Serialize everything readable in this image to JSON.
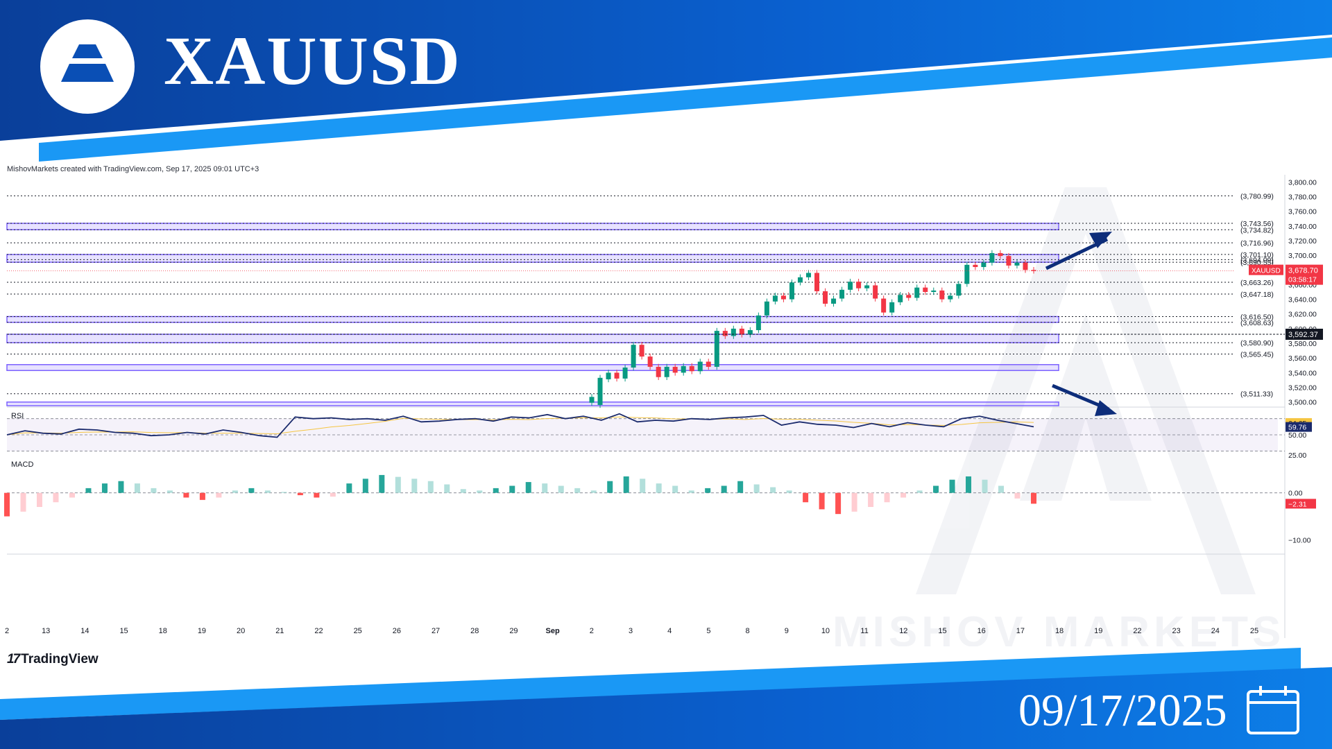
{
  "header": {
    "symbol": "XAUUSD",
    "date": "09/17/2025"
  },
  "watermark": {
    "text": "MISHOV MARKETS"
  },
  "credit": "MishovMarkets created with TradingView.com, Sep 17, 2025 09:01 UTC+3",
  "footer_brand": "TradingView",
  "colors": {
    "brand_blue": "#0a4fb5",
    "light_blue": "#1e90ff",
    "bull": "#089981",
    "bear": "#f23645",
    "zone": "#7b61ff",
    "rsi": "#1a2a6c",
    "rsi_ma": "#f5c542"
  },
  "chart_data": {
    "type": "candlestick",
    "symbol_tag": "XAUUSD",
    "last_price_label": "3,678.70",
    "countdown_label": "03:58:17",
    "cross_label": "3,592.37",
    "y_range": [
      3495,
      3805
    ],
    "y_ticks": [
      {
        "v": 3800,
        "l": "3,800.00"
      },
      {
        "v": 3780,
        "l": "3,780.00"
      },
      {
        "v": 3760,
        "l": "3,760.00"
      },
      {
        "v": 3740,
        "l": "3,740.00"
      },
      {
        "v": 3720,
        "l": "3,720.00"
      },
      {
        "v": 3700,
        "l": "3,700.00"
      },
      {
        "v": 3660,
        "l": "3,660.00"
      },
      {
        "v": 3640,
        "l": "3,640.00"
      },
      {
        "v": 3620,
        "l": "3,620.00"
      },
      {
        "v": 3600,
        "l": "3,600.00"
      },
      {
        "v": 3580,
        "l": "3,580.00"
      },
      {
        "v": 3560,
        "l": "3,560.00"
      },
      {
        "v": 3540,
        "l": "3,540.00"
      },
      {
        "v": 3520,
        "l": "3,520.00"
      },
      {
        "v": 3500,
        "l": "3,500.00"
      }
    ],
    "levels": [
      {
        "v": 3780.99,
        "l": "(3,780.99)"
      },
      {
        "v": 3743.56,
        "l": "(3,743.56)"
      },
      {
        "v": 3734.82,
        "l": "(3,734.82)"
      },
      {
        "v": 3716.96,
        "l": "(3,716.96)"
      },
      {
        "v": 3701.1,
        "l": "(3,701.10)"
      },
      {
        "v": 3694.09,
        "l": "(3,694.09)"
      },
      {
        "v": 3690.55,
        "l": "(3,690.55)"
      },
      {
        "v": 3663.26,
        "l": "(3,663.26)"
      },
      {
        "v": 3647.18,
        "l": "(3,647.18)"
      },
      {
        "v": 3616.5,
        "l": "(3,616.50)"
      },
      {
        "v": 3608.63,
        "l": "(3,608.63)"
      },
      {
        "v": 3580.9,
        "l": "(3,580.90)"
      },
      {
        "v": 3565.45,
        "l": "(3,565.45)"
      },
      {
        "v": 3511.33,
        "l": "(3,511.33)"
      }
    ],
    "zones": [
      [
        3734.82,
        3743.56
      ],
      [
        3690.55,
        3701.1
      ],
      [
        3608.63,
        3616.5
      ],
      [
        3580.9,
        3592.37
      ],
      [
        3543,
        3551
      ],
      [
        3495,
        3500
      ]
    ],
    "x_labels": [
      "2",
      "13",
      "14",
      "15",
      "18",
      "19",
      "20",
      "21",
      "22",
      "25",
      "26",
      "27",
      "28",
      "29",
      "Sep",
      "2",
      "3",
      "4",
      "5",
      "8",
      "9",
      "10",
      "11",
      "12",
      "15",
      "16",
      "17",
      "18",
      "19",
      "22",
      "23",
      "24",
      "25"
    ],
    "candle_pairs": [
      [
        3499,
        3507
      ],
      [
        3496,
        3533
      ],
      [
        3531,
        3540
      ],
      [
        3540,
        3532
      ],
      [
        3532,
        3547
      ],
      [
        3547,
        3578
      ],
      [
        3578,
        3562
      ],
      [
        3562,
        3548
      ],
      [
        3548,
        3534
      ],
      [
        3534,
        3548
      ],
      [
        3548,
        3540
      ],
      [
        3540,
        3549
      ],
      [
        3549,
        3542
      ],
      [
        3542,
        3555
      ],
      [
        3555,
        3548
      ],
      [
        3548,
        3597
      ],
      [
        3597,
        3590
      ],
      [
        3590,
        3600
      ],
      [
        3600,
        3592
      ],
      [
        3592,
        3598
      ],
      [
        3598,
        3618
      ],
      [
        3618,
        3637
      ],
      [
        3637,
        3645
      ],
      [
        3645,
        3640
      ],
      [
        3640,
        3663
      ],
      [
        3663,
        3670
      ],
      [
        3670,
        3676
      ],
      [
        3676,
        3651
      ],
      [
        3651,
        3634
      ],
      [
        3634,
        3641
      ],
      [
        3641,
        3653
      ],
      [
        3653,
        3664
      ],
      [
        3664,
        3655
      ],
      [
        3655,
        3659
      ],
      [
        3659,
        3641
      ],
      [
        3641,
        3622
      ],
      [
        3622,
        3636
      ],
      [
        3636,
        3646
      ],
      [
        3646,
        3642
      ],
      [
        3642,
        3656
      ],
      [
        3656,
        3650
      ],
      [
        3650,
        3652
      ],
      [
        3652,
        3640
      ],
      [
        3640,
        3645
      ],
      [
        3645,
        3661
      ],
      [
        3661,
        3687
      ],
      [
        3687,
        3684
      ],
      [
        3684,
        3690
      ],
      [
        3690,
        3703
      ],
      [
        3703,
        3699
      ],
      [
        3699,
        3686
      ],
      [
        3686,
        3690
      ],
      [
        3690,
        3680
      ],
      [
        3680,
        3679
      ]
    ],
    "rsi": {
      "label": "RSI",
      "value_label": "59.76",
      "ma_label": "64.65",
      "ticks": [
        "50.00",
        "25.00"
      ],
      "range": [
        20,
        80
      ],
      "values": [
        50,
        55,
        52,
        51,
        57,
        56,
        53,
        52,
        49,
        50,
        53,
        51,
        56,
        53,
        49,
        47,
        72,
        70,
        71,
        69,
        70,
        68,
        73,
        66,
        67,
        69,
        70,
        67,
        72,
        71,
        75,
        70,
        73,
        68,
        76,
        66,
        68,
        67,
        70,
        69,
        71,
        72,
        74,
        62,
        66,
        63,
        62,
        59,
        64,
        60,
        65,
        62,
        60,
        70,
        73,
        68,
        64,
        60
      ]
    },
    "macd": {
      "label": "MACD",
      "value_label": "−2.31",
      "ticks": [
        "0.00",
        "−10.00"
      ],
      "range": [
        -12,
        6
      ],
      "values": [
        -5,
        -4,
        -3,
        -2,
        -1,
        1,
        2,
        2.5,
        2,
        1,
        0.5,
        -1,
        -1.5,
        -1,
        0.5,
        1,
        0.5,
        0.2,
        -0.5,
        -1,
        -0.8,
        2,
        3,
        3.8,
        3.4,
        3,
        2.5,
        1.8,
        0.8,
        0.5,
        1,
        1.5,
        2.3,
        2,
        1.5,
        1,
        0.5,
        2.5,
        3.5,
        3,
        2,
        1.5,
        0.5,
        1,
        1.5,
        2.5,
        1.8,
        1.2,
        0.5,
        -2,
        -3.5,
        -4.5,
        -4,
        -3,
        -2,
        -1,
        0.5,
        1.5,
        2.8,
        3.5,
        2.8,
        1.5,
        -1.2,
        -2.31
      ]
    }
  }
}
